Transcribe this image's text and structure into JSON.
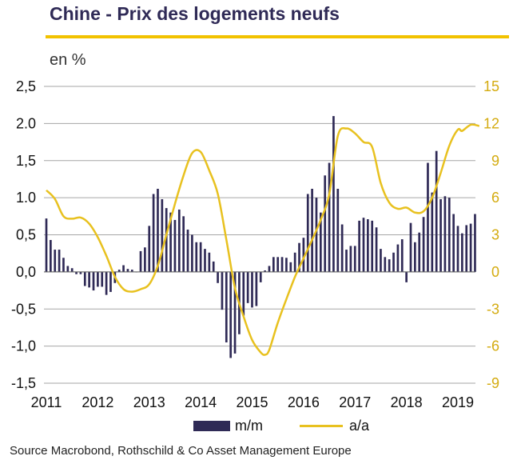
{
  "title": "Chine - Prix des logements neufs",
  "unit_label": "en %",
  "source": "Source Macrobond, Rothschild & Co Asset Management Europe",
  "legend": {
    "bar_label": "m/m",
    "line_label": "a/a"
  },
  "colors": {
    "title": "#2f2a56",
    "bars": "#2f2a56",
    "line": "#e8c11f",
    "rule": "#f2c200",
    "grid": "#a6a6a6"
  },
  "chart_data": {
    "type": "bar+line",
    "x_tick_labels": [
      "2011",
      "2012",
      "2013",
      "2014",
      "2015",
      "2016",
      "2017",
      "2018",
      "2019"
    ],
    "left_axis": {
      "ticks": [
        "2,5",
        "2.0",
        "1,5",
        "1.0",
        "0,5",
        "0,0",
        "-0,5",
        "-1,0",
        "-1,5"
      ],
      "ylim": [
        -1.5,
        2.5
      ]
    },
    "right_axis": {
      "ticks": [
        "15",
        "12",
        "9",
        "6",
        "3",
        "0",
        "-3",
        "-6",
        "-9"
      ],
      "ylim": [
        -9,
        15
      ]
    },
    "grid": true,
    "legend_position": "bottom",
    "series": [
      {
        "name": "m/m",
        "axis": "left",
        "type": "bar",
        "start": "2011-01",
        "values": [
          0.72,
          0.43,
          0.3,
          0.3,
          0.19,
          0.08,
          0.05,
          -0.03,
          -0.03,
          -0.19,
          -0.21,
          -0.25,
          -0.2,
          -0.2,
          -0.31,
          -0.27,
          -0.15,
          0.03,
          0.09,
          0.04,
          0.03,
          0.0,
          0.28,
          0.33,
          0.62,
          1.05,
          1.12,
          0.98,
          0.86,
          0.8,
          0.7,
          0.84,
          0.75,
          0.57,
          0.5,
          0.4,
          0.4,
          0.31,
          0.26,
          0.14,
          -0.15,
          -0.51,
          -0.95,
          -1.16,
          -1.1,
          -0.84,
          -0.59,
          -0.42,
          -0.48,
          -0.46,
          -0.14,
          0.02,
          0.08,
          0.2,
          0.2,
          0.2,
          0.19,
          0.13,
          0.26,
          0.39,
          0.46,
          1.05,
          1.12,
          1.0,
          0.8,
          1.3,
          1.47,
          2.1,
          1.12,
          0.64,
          0.3,
          0.35,
          0.35,
          0.69,
          0.73,
          0.71,
          0.69,
          0.6,
          0.31,
          0.2,
          0.17,
          0.26,
          0.37,
          0.44,
          -0.14,
          0.66,
          0.4,
          0.53,
          0.74,
          1.47,
          1.07,
          1.63,
          0.98,
          1.02,
          1.0,
          0.78,
          0.62,
          0.52,
          0.63,
          0.65,
          0.78
        ]
      },
      {
        "name": "a/a",
        "axis": "right",
        "type": "line",
        "points": [
          [
            "2011-01",
            6.6
          ],
          [
            "2011-03",
            5.9
          ],
          [
            "2011-05",
            4.5
          ],
          [
            "2011-07",
            4.3
          ],
          [
            "2011-09",
            4.4
          ],
          [
            "2011-11",
            3.9
          ],
          [
            "2012-01",
            2.8
          ],
          [
            "2012-03",
            1.3
          ],
          [
            "2012-05",
            -0.4
          ],
          [
            "2012-07",
            -1.4
          ],
          [
            "2012-09",
            -1.6
          ],
          [
            "2012-11",
            -1.4
          ],
          [
            "2013-01",
            -1.0
          ],
          [
            "2013-03",
            0.5
          ],
          [
            "2013-05",
            3.0
          ],
          [
            "2013-07",
            5.5
          ],
          [
            "2013-09",
            7.8
          ],
          [
            "2013-11",
            9.6
          ],
          [
            "2014-01",
            9.7
          ],
          [
            "2014-03",
            8.2
          ],
          [
            "2014-05",
            6.3
          ],
          [
            "2014-07",
            2.6
          ],
          [
            "2014-09",
            -1.3
          ],
          [
            "2014-11",
            -3.6
          ],
          [
            "2015-01",
            -5.5
          ],
          [
            "2015-03",
            -6.5
          ],
          [
            "2015-04",
            -6.7
          ],
          [
            "2015-05",
            -6.3
          ],
          [
            "2015-07",
            -4.1
          ],
          [
            "2015-09",
            -2.2
          ],
          [
            "2015-11",
            -0.4
          ],
          [
            "2016-01",
            1.1
          ],
          [
            "2016-03",
            2.6
          ],
          [
            "2016-05",
            4.2
          ],
          [
            "2016-07",
            6.3
          ],
          [
            "2016-09",
            11.0
          ],
          [
            "2016-11",
            11.6
          ],
          [
            "2017-01",
            11.2
          ],
          [
            "2017-03",
            10.5
          ],
          [
            "2017-05",
            10.1
          ],
          [
            "2017-07",
            7.2
          ],
          [
            "2017-09",
            5.6
          ],
          [
            "2017-11",
            5.1
          ],
          [
            "2018-01",
            5.2
          ],
          [
            "2018-03",
            4.8
          ],
          [
            "2018-05",
            4.9
          ],
          [
            "2018-07",
            6.0
          ],
          [
            "2018-09",
            8.0
          ],
          [
            "2018-11",
            10.2
          ],
          [
            "2019-01",
            11.5
          ],
          [
            "2019-02",
            11.4
          ],
          [
            "2019-04",
            11.9
          ],
          [
            "2019-06",
            11.8
          ]
        ]
      }
    ]
  }
}
